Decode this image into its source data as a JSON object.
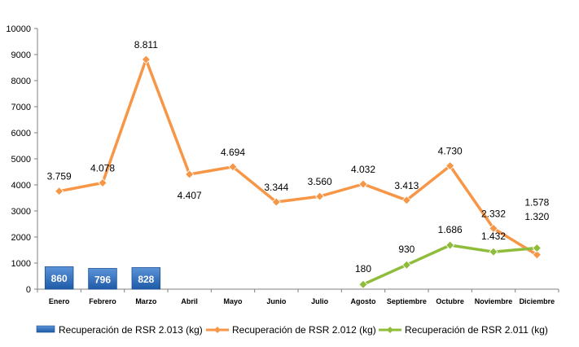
{
  "chart_data": {
    "type": "bar+line",
    "categories": [
      "Enero",
      "Febrero",
      "Marzo",
      "Abril",
      "Mayo",
      "Junio",
      "Julio",
      "Agosto",
      "Septiembre",
      "Octubre",
      "Noviembre",
      "Diciembre"
    ],
    "ylim": [
      0,
      10000
    ],
    "yticks": [
      "0",
      "1000",
      "2000",
      "3000",
      "4000",
      "5000",
      "6000",
      "7000",
      "8000",
      "9000",
      "10000"
    ],
    "grid": false,
    "legend_position": "bottom",
    "series": [
      {
        "name": "Recuperación de RSR 2.013 (kg)",
        "type": "bar",
        "color": "#2f6eb9",
        "values": [
          860,
          796,
          828,
          null,
          null,
          null,
          null,
          null,
          null,
          null,
          null,
          null
        ],
        "labels": [
          "860",
          "796",
          "828",
          "",
          "",
          "",
          "",
          "",
          "",
          "",
          "",
          ""
        ]
      },
      {
        "name": "Recuperación de RSR 2.012 (kg)",
        "type": "line",
        "color": "#f79646",
        "values": [
          3759,
          4078,
          8811,
          4407,
          4694,
          3344,
          3560,
          4032,
          3413,
          4730,
          2332,
          1320
        ],
        "labels": [
          "3.759",
          "4.078",
          "8.811",
          "4.407",
          "4.694",
          "3.344",
          "3.560",
          "4.032",
          "3.413",
          "4.730",
          "2.332",
          "1.320"
        ]
      },
      {
        "name": "Recuperación de RSR 2.011 (kg)",
        "type": "line",
        "color": "#8fbc3b",
        "values": [
          null,
          null,
          null,
          null,
          null,
          null,
          null,
          180,
          930,
          1686,
          1432,
          1578
        ],
        "labels": [
          "",
          "",
          "",
          "",
          "",
          "",
          "",
          "180",
          "930",
          "1.686",
          "1.432",
          "1.578"
        ]
      }
    ]
  }
}
